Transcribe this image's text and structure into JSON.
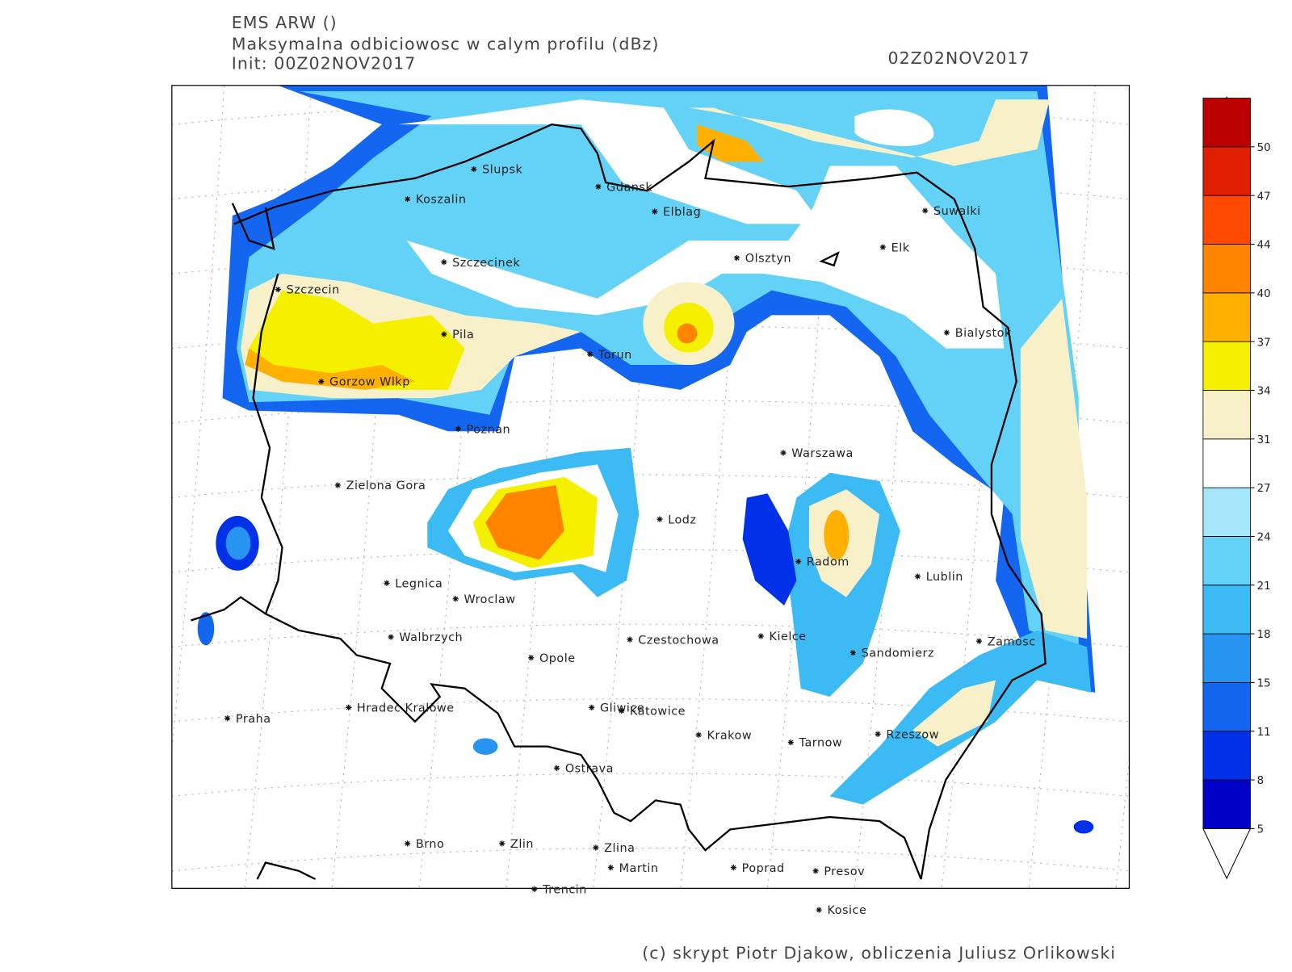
{
  "header": {
    "model": "EMS ARW ()",
    "field": "Maksymalna odbiciowosc w calym profilu (dBz)",
    "init": "Init: 00Z02NOV2017",
    "valid": "02Z02NOV2017"
  },
  "map": {
    "cities": [
      "Slupsk",
      "Koszalin",
      "Gdansk",
      "Elblag",
      "Szczecinek",
      "Olsztyn",
      "Suwalki",
      "Elk",
      "Szczecin",
      "Pila",
      "Torun",
      "Bialystok",
      "Gorzow Wlkp",
      "Poznan",
      "Warszawa",
      "Zielona Gora",
      "Lodz",
      "Radom",
      "Lublin",
      "Legnica",
      "Wroclaw",
      "Walbrzych",
      "Czestochowa",
      "Kielce",
      "Zamosc",
      "Opole",
      "Sandomierz",
      "Praha",
      "Hradec Kralowe",
      "Gliwice",
      "Katowice",
      "Krakow",
      "Tarnow",
      "Rzeszow",
      "Ostrava",
      "Brno",
      "Zlin",
      "Zlina",
      "Martin",
      "Poprad",
      "Presov",
      "Trencin",
      "Kosice"
    ]
  },
  "colorbar": {
    "ticks": [
      5,
      8,
      11,
      15,
      18,
      21,
      24,
      27,
      31,
      34,
      37,
      40,
      44,
      47,
      50
    ],
    "colors": [
      "#0000c8",
      "#0030e8",
      "#1466f0",
      "#2894f2",
      "#3cbaf4",
      "#64d2f6",
      "#a6e6fa",
      "#ffffff",
      "#f8f0c8",
      "#f5ef00",
      "#ffb000",
      "#ff8400",
      "#ff4a00",
      "#e01e00",
      "#bb0000"
    ]
  },
  "credit": "(c) skrypt Piotr Djakow, obliczenia Juliusz Orlikowski"
}
